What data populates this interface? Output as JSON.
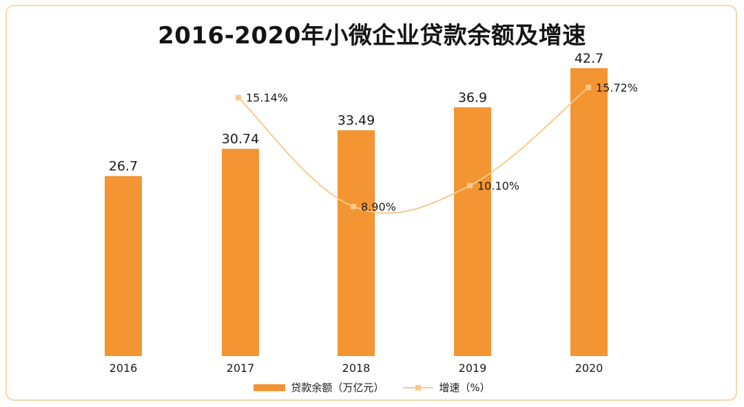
{
  "chart_data": {
    "type": "bar",
    "title": "2016-2020年小微企业贷款余额及增速",
    "categories": [
      "2016",
      "2017",
      "2018",
      "2019",
      "2020"
    ],
    "series": [
      {
        "name": "贷款余额（万亿元）",
        "type": "bar",
        "values": [
          26.7,
          30.74,
          33.49,
          36.9,
          42.7
        ],
        "labels": [
          "26.7",
          "30.74",
          "33.49",
          "36.9",
          "42.7"
        ],
        "color": "#f39532"
      },
      {
        "name": "增速（%）",
        "type": "line",
        "values": [
          null,
          15.14,
          8.9,
          10.1,
          15.72
        ],
        "labels": [
          "",
          "15.14%",
          "8.90%",
          "10.10%",
          "15.72%"
        ],
        "color": "#f8c98a"
      }
    ],
    "ylim": [
      0,
      45
    ],
    "grid": false,
    "legend": "bottom-center"
  }
}
